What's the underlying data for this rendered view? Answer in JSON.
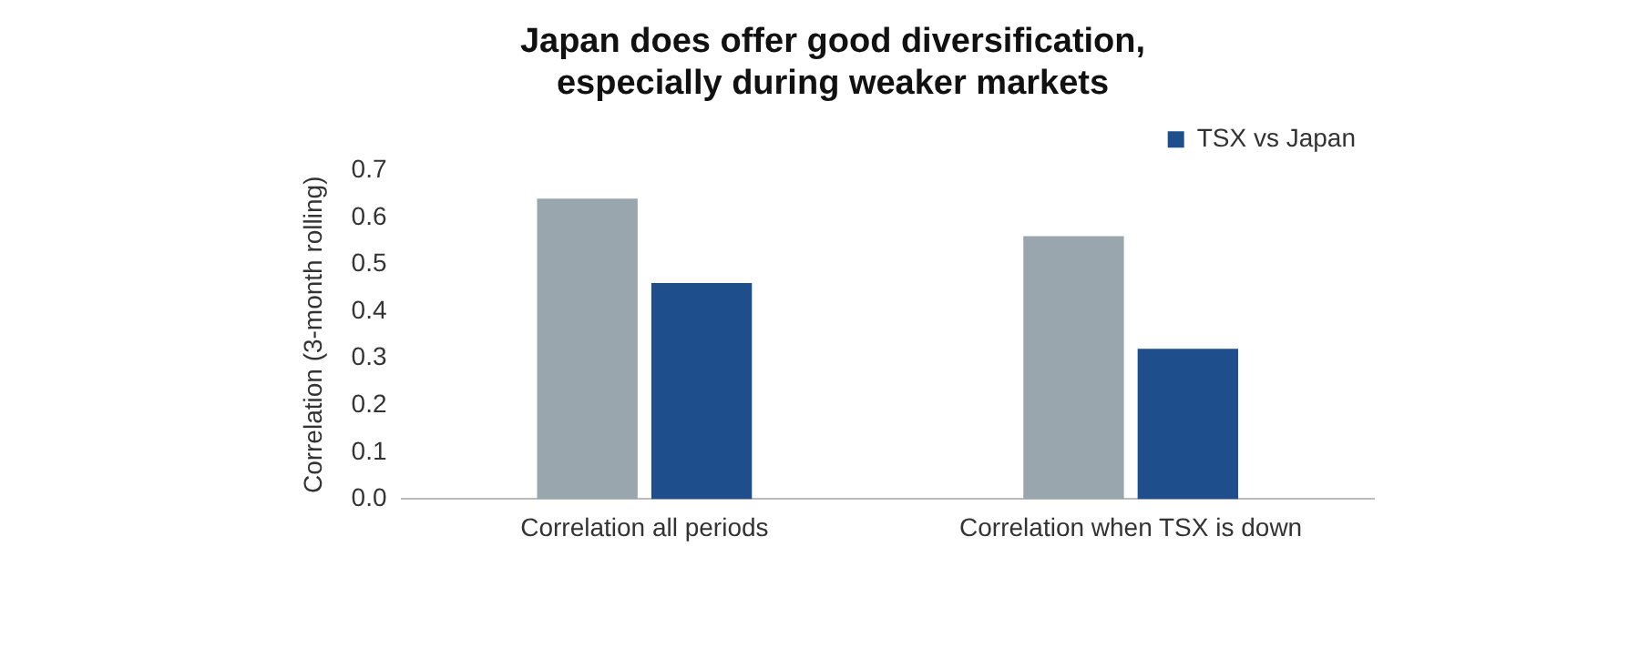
{
  "chart_data": {
    "type": "bar",
    "title": [
      "Japan does offer good diversification,",
      "especially during weaker markets"
    ],
    "ylabel": "Correlation (3-month rolling)",
    "categories": [
      "Correlation all periods",
      "Correlation when TSX is down"
    ],
    "series": [
      {
        "color": "#9aa6ae",
        "values": [
          0.64,
          0.56
        ]
      },
      {
        "name": "TSX vs Japan",
        "color": "#1f4e8c",
        "values": [
          0.46,
          0.32
        ]
      }
    ],
    "ylim": [
      0,
      0.7
    ],
    "yticks": [
      {
        "value": 0,
        "label": "0.0"
      },
      0.1,
      0.2,
      0.3,
      0.4,
      0.5,
      0.6,
      0.7
    ],
    "grid": false,
    "legend": "top"
  }
}
